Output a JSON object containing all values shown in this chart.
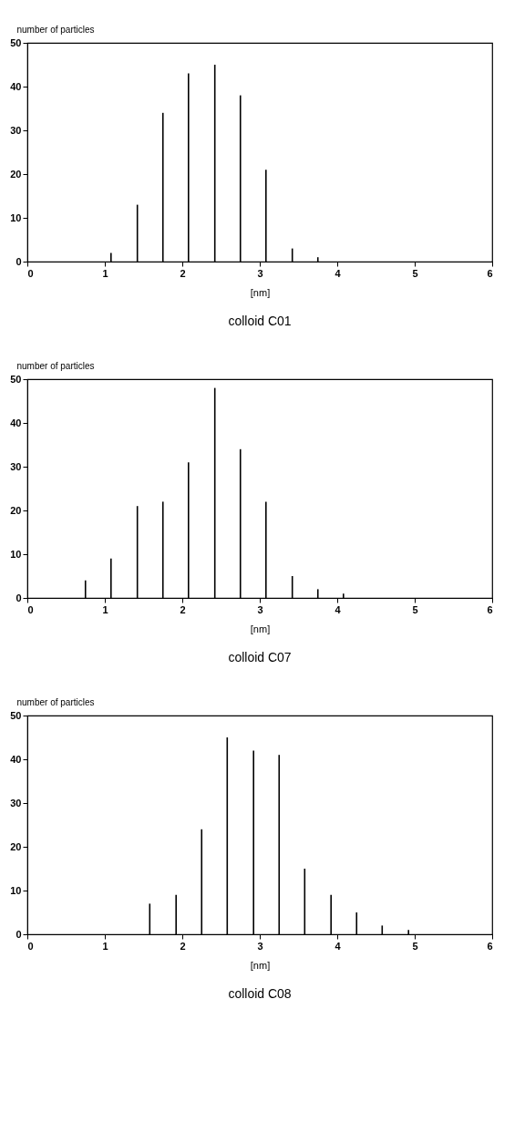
{
  "chart_data": [
    {
      "type": "bar",
      "title": "colloid C01",
      "xlabel": "[nm]",
      "ylabel": "number of particles",
      "color": "#000000",
      "x": [
        1.08,
        1.42,
        1.75,
        2.08,
        2.42,
        2.75,
        3.08,
        3.42,
        3.75
      ],
      "values": [
        2,
        13,
        34,
        43,
        45,
        38,
        21,
        3,
        1
      ],
      "xlim": [
        0,
        6
      ],
      "xticks": [
        0,
        1,
        2,
        3,
        4,
        5,
        6
      ],
      "ylim": [
        0,
        50
      ],
      "yticks": [
        0,
        10,
        20,
        30,
        40,
        50
      ]
    },
    {
      "type": "bar",
      "title": "colloid C07",
      "xlabel": "[nm]",
      "ylabel": "number of particles",
      "color": "#000000",
      "x": [
        0.75,
        1.08,
        1.42,
        1.75,
        2.08,
        2.42,
        2.75,
        3.08,
        3.42,
        3.75,
        4.08
      ],
      "values": [
        4,
        9,
        21,
        22,
        31,
        48,
        34,
        22,
        5,
        2,
        1
      ],
      "xlim": [
        0,
        6
      ],
      "xticks": [
        0,
        1,
        2,
        3,
        4,
        5,
        6
      ],
      "ylim": [
        0,
        50
      ],
      "yticks": [
        0,
        10,
        20,
        30,
        40,
        50
      ]
    },
    {
      "type": "bar",
      "title": "colloid C08",
      "xlabel": "[nm]",
      "ylabel": "number of particles",
      "color": "#000000",
      "x": [
        1.58,
        1.92,
        2.25,
        2.58,
        2.92,
        3.25,
        3.58,
        3.92,
        4.25,
        4.58,
        4.92
      ],
      "values": [
        7,
        9,
        24,
        45,
        42,
        41,
        15,
        9,
        5,
        2,
        1
      ],
      "xlim": [
        0,
        6
      ],
      "xticks": [
        0,
        1,
        2,
        3,
        4,
        5,
        6
      ],
      "ylim": [
        0,
        50
      ],
      "yticks": [
        0,
        10,
        20,
        30,
        40,
        50
      ]
    }
  ]
}
